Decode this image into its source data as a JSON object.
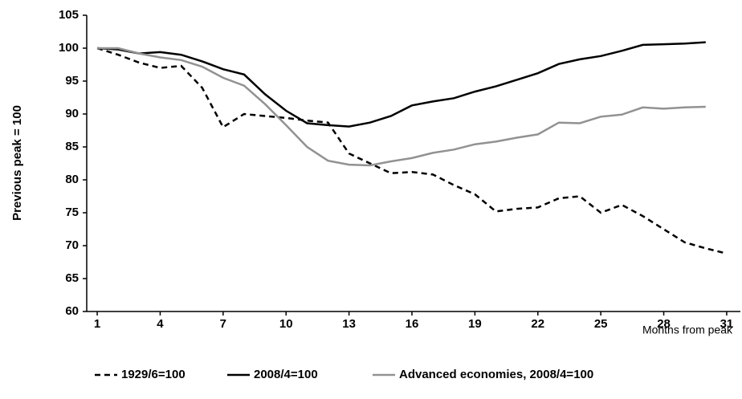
{
  "chart_data": {
    "type": "line",
    "x_label": "Months from peak",
    "y_label": "Previous peak = 100",
    "x": [
      1,
      2,
      3,
      4,
      5,
      6,
      7,
      8,
      9,
      10,
      11,
      12,
      13,
      14,
      15,
      16,
      17,
      18,
      19,
      20,
      21,
      22,
      23,
      24,
      25,
      26,
      27,
      28,
      29,
      30,
      31
    ],
    "xlim": [
      0.5,
      31.5
    ],
    "xticks": [
      1,
      4,
      7,
      10,
      13,
      16,
      19,
      22,
      25,
      28,
      31
    ],
    "ylim": [
      60,
      105
    ],
    "yticks": [
      60,
      65,
      70,
      75,
      80,
      85,
      90,
      95,
      100,
      105
    ],
    "legend": "bottom",
    "series": [
      {
        "name": "1929/6=100",
        "color": "#000000",
        "dash": "dashed",
        "values": [
          100,
          99,
          97.8,
          97,
          97.3,
          94,
          88,
          90,
          89.7,
          89.4,
          89,
          88.7,
          84,
          82.5,
          81,
          81.2,
          80.8,
          79.2,
          77.8,
          75.2,
          75.6,
          75.8,
          77.2,
          77.5,
          75,
          76.2,
          74.5,
          72.5,
          70.5,
          69.6,
          68.8
        ]
      },
      {
        "name": "2008/4=100",
        "color": "#000000",
        "dash": "solid",
        "values": [
          100,
          99.8,
          99.2,
          99.4,
          99,
          98,
          96.8,
          96,
          93,
          90.5,
          88.6,
          88.3,
          88.1,
          88.7,
          89.7,
          91.3,
          91.9,
          92.4,
          93.4,
          94.2,
          95.2,
          96.2,
          97.6,
          98.3,
          98.8,
          99.6,
          100.5,
          100.6,
          100.7,
          100.9,
          null
        ]
      },
      {
        "name": "Advanced economies, 2008/4=100",
        "color": "#929292",
        "dash": "solid",
        "values": [
          100,
          100,
          99.2,
          98.6,
          98.2,
          97.2,
          95.5,
          94.3,
          91.5,
          88.3,
          85,
          82.9,
          82.3,
          82.2,
          82.8,
          83.3,
          84.1,
          84.6,
          85.4,
          85.8,
          86.4,
          86.9,
          88.7,
          88.6,
          89.6,
          89.9,
          91,
          90.8,
          91,
          91.1,
          null
        ]
      }
    ]
  }
}
